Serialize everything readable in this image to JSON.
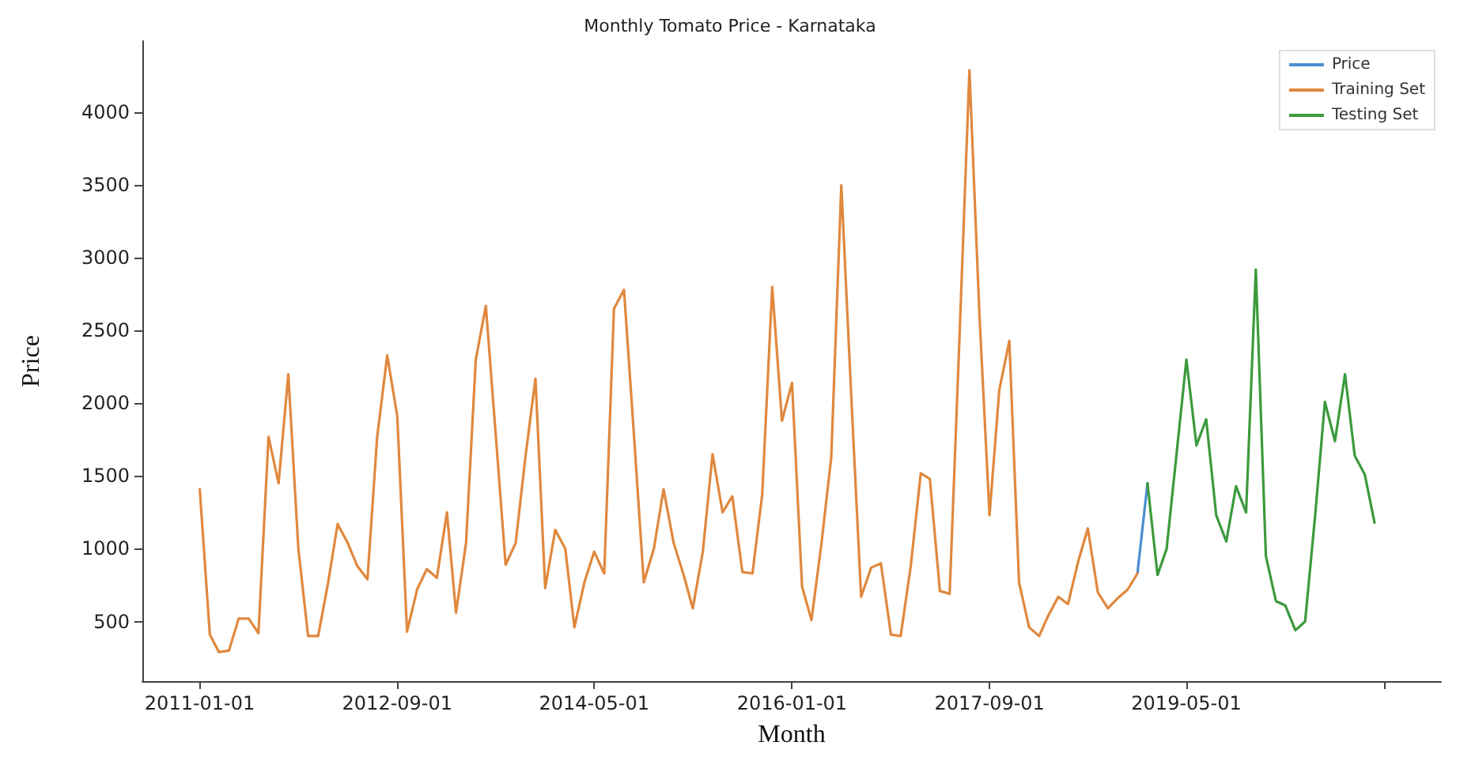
{
  "chart_data": {
    "type": "line",
    "title": "Monthly Tomato Price - Karnataka",
    "xlabel": "Month",
    "ylabel": "Price",
    "series": [
      {
        "name": "Price",
        "color": "#4a8fd0",
        "x": [
          "2018-12",
          "2019-01"
        ],
        "values": [
          830,
          1450
        ]
      },
      {
        "name": "Training Set",
        "color": "#e0883e",
        "x": [
          "2011-01",
          "2011-02",
          "2011-03",
          "2011-04",
          "2011-05",
          "2011-06",
          "2011-07",
          "2011-08",
          "2011-09",
          "2011-10",
          "2011-11",
          "2011-12",
          "2012-01",
          "2012-02",
          "2012-03",
          "2012-04",
          "2012-05",
          "2012-06",
          "2012-07",
          "2012-08",
          "2012-09",
          "2012-10",
          "2012-11",
          "2012-12",
          "2013-01",
          "2013-02",
          "2013-03",
          "2013-04",
          "2013-05",
          "2013-06",
          "2013-07",
          "2013-08",
          "2013-09",
          "2013-10",
          "2013-11",
          "2013-12",
          "2014-01",
          "2014-02",
          "2014-03",
          "2014-04",
          "2014-05",
          "2014-06",
          "2014-07",
          "2014-08",
          "2014-09",
          "2014-10",
          "2014-11",
          "2014-12",
          "2015-01",
          "2015-02",
          "2015-03",
          "2015-04",
          "2015-05",
          "2015-06",
          "2015-07",
          "2015-08",
          "2015-09",
          "2015-10",
          "2015-11",
          "2015-12",
          "2016-01",
          "2016-02",
          "2016-03",
          "2016-04",
          "2016-05",
          "2016-06",
          "2016-07",
          "2016-08",
          "2016-09",
          "2016-10",
          "2016-11",
          "2016-12",
          "2017-01",
          "2017-02",
          "2017-03",
          "2017-04",
          "2017-05",
          "2017-06",
          "2017-07",
          "2017-08",
          "2017-09",
          "2017-10",
          "2017-11",
          "2017-12",
          "2018-01",
          "2018-02",
          "2018-03",
          "2018-04",
          "2018-05",
          "2018-06",
          "2018-07",
          "2018-08",
          "2018-09",
          "2018-10",
          "2018-11",
          "2018-12"
        ],
        "values": [
          1410,
          410,
          290,
          300,
          520,
          520,
          420,
          1770,
          1450,
          2200,
          1000,
          400,
          400,
          770,
          1170,
          1040,
          880,
          790,
          1770,
          2330,
          1910,
          430,
          720,
          860,
          800,
          1250,
          560,
          1040,
          2300,
          2670,
          1800,
          890,
          1040,
          1630,
          2170,
          730,
          1130,
          1000,
          460,
          770,
          980,
          830,
          2650,
          2780,
          1770,
          770,
          1000,
          1410,
          1040,
          820,
          590,
          980,
          1650,
          1250,
          1360,
          840,
          830,
          1370,
          2800,
          1880,
          2140,
          740,
          510,
          1040,
          1630,
          3500,
          2080,
          670,
          870,
          900,
          410,
          400,
          880,
          1520,
          1480,
          710,
          690,
          2490,
          4290,
          2600,
          1230,
          2090,
          2430,
          770,
          460,
          400,
          540,
          670,
          620,
          910,
          1140,
          700,
          590,
          660,
          720,
          830
        ]
      },
      {
        "name": "Testing Set",
        "color": "#3c9a3c",
        "x": [
          "2019-01",
          "2019-02",
          "2019-03",
          "2019-04",
          "2019-05",
          "2019-06",
          "2019-07",
          "2019-08",
          "2019-09",
          "2019-10",
          "2019-11",
          "2019-12",
          "2020-01",
          "2020-02",
          "2020-03",
          "2020-04",
          "2020-05",
          "2020-06",
          "2020-07",
          "2020-08",
          "2020-09",
          "2020-10",
          "2020-11",
          "2020-12"
        ],
        "values": [
          1450,
          820,
          1000,
          1660,
          2300,
          1710,
          1890,
          1230,
          1050,
          1430,
          1250,
          2920,
          950,
          640,
          610,
          440,
          500,
          1230,
          2010,
          1740,
          2200,
          1640,
          1510,
          1180
        ]
      }
    ],
    "xlim": [
      "2010-07-08",
      "2021-06-24"
    ],
    "xticks": [
      "2011-01-01",
      "2012-09-01",
      "2014-05-01",
      "2016-01-01",
      "2017-09-01",
      "2019-05-01",
      {
        "value": "2021-01-01",
        "label": null
      }
    ],
    "ylim": [
      90,
      4490
    ],
    "yticks": [
      500,
      1000,
      1500,
      2000,
      2500,
      3000,
      3500,
      4000
    ],
    "grid": false,
    "legend": "top right",
    "marker": "none",
    "line_style": "solid"
  }
}
